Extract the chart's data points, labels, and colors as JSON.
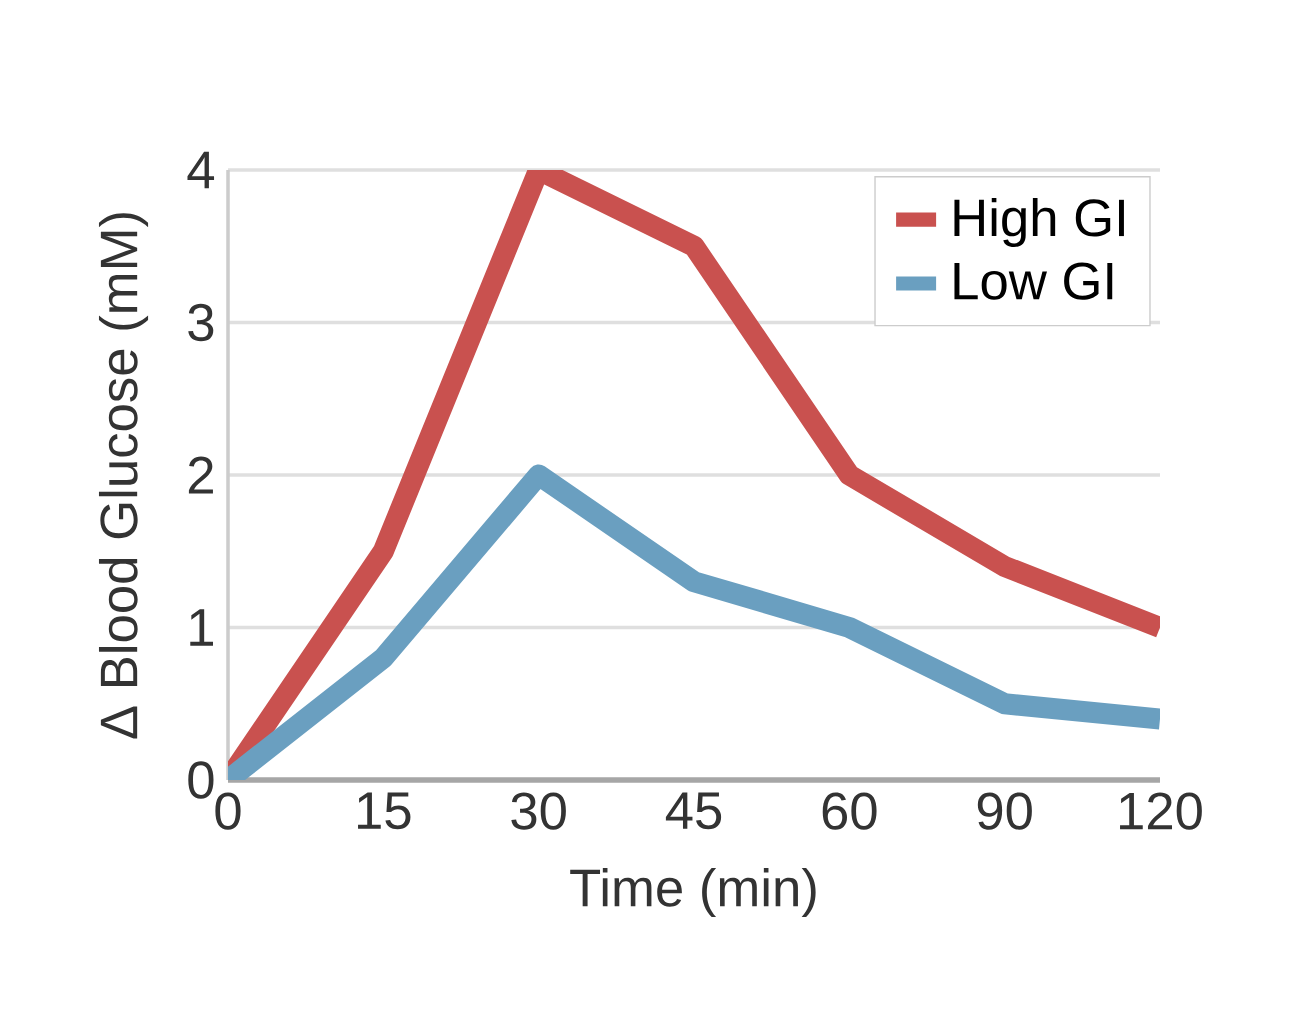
{
  "chart_data": {
    "type": "line",
    "xlabel": "Time (min)",
    "ylabel": "Δ Blood Glucose (mM)",
    "categories": [
      "0",
      "15",
      "30",
      "45",
      "60",
      "90",
      "120"
    ],
    "series": [
      {
        "name": "High GI",
        "color": "#c9514f",
        "values": [
          0,
          1.5,
          4,
          3.5,
          2,
          1.4,
          1.0
        ]
      },
      {
        "name": "Low GI",
        "color": "#6a9fc0",
        "values": [
          0,
          0.8,
          2,
          1.3,
          1.0,
          0.5,
          0.4
        ]
      }
    ],
    "ylim": [
      0,
      4
    ],
    "yticks": [
      0,
      1,
      2,
      3,
      4
    ],
    "grid": "y",
    "legend": "top right",
    "marker": "none",
    "line_style": "solid"
  }
}
